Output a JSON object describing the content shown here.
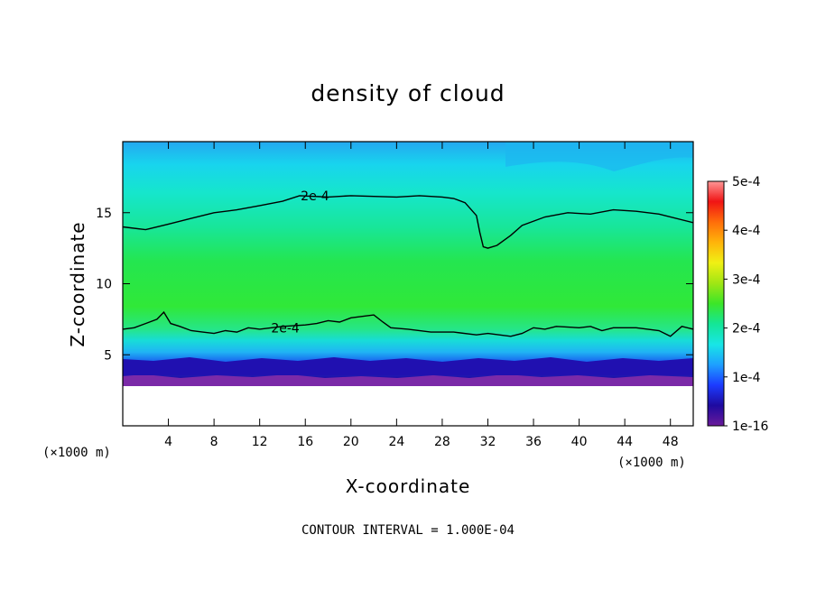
{
  "chart_data": {
    "type": "heatmap",
    "title": "density of cloud",
    "xlabel": "X-coordinate",
    "ylabel": "Z-coordinate",
    "x_unit": "(×1000 m)",
    "y_unit": "(×1000 m)",
    "xlim": [
      0,
      50
    ],
    "ylim": [
      0,
      20
    ],
    "x_ticks": [
      4,
      8,
      12,
      16,
      20,
      24,
      28,
      32,
      36,
      40,
      44,
      48
    ],
    "y_ticks": [
      5,
      10,
      15
    ],
    "note": "CONTOUR INTERVAL = 1.000E-04",
    "colorbar": {
      "min": 1e-16,
      "max": 0.0005,
      "tick_values": [
        1e-16,
        0.0001,
        0.0002,
        0.0003,
        0.0004,
        0.0005
      ],
      "tick_labels": [
        "1e-16",
        "1e-4",
        "2e-4",
        "3e-4",
        "4e-4",
        "5e-4"
      ],
      "stops": [
        "#6a1a9a",
        "#1e0aa0",
        "#1c3cff",
        "#1ea0ff",
        "#18e6e6",
        "#14e696",
        "#3ce628",
        "#a0e614",
        "#f0f014",
        "#ffb40a",
        "#ff6e0a",
        "#f01414",
        "#ff9696"
      ]
    },
    "contours": [
      {
        "label": "2e-4",
        "level": 0.0002,
        "label_at": [
          15.6,
          16.2
        ],
        "points": [
          [
            0,
            14.0
          ],
          [
            2,
            13.8
          ],
          [
            4,
            14.2
          ],
          [
            6,
            14.6
          ],
          [
            8,
            15.0
          ],
          [
            10,
            15.2
          ],
          [
            12,
            15.5
          ],
          [
            14,
            15.8
          ],
          [
            15.5,
            16.2
          ],
          [
            18,
            16.1
          ],
          [
            20,
            16.2
          ],
          [
            24,
            16.1
          ],
          [
            26,
            16.2
          ],
          [
            28,
            16.1
          ],
          [
            29,
            16.0
          ],
          [
            30,
            15.7
          ],
          [
            31,
            14.8
          ],
          [
            31.3,
            13.6
          ],
          [
            31.6,
            12.6
          ],
          [
            32,
            12.5
          ],
          [
            32.8,
            12.7
          ],
          [
            34,
            13.4
          ],
          [
            35,
            14.1
          ],
          [
            37,
            14.7
          ],
          [
            39,
            15.0
          ],
          [
            41,
            14.9
          ],
          [
            43,
            15.2
          ],
          [
            45,
            15.1
          ],
          [
            47,
            14.9
          ],
          [
            50,
            14.3
          ]
        ]
      },
      {
        "label": "2e-4",
        "level": 0.0002,
        "label_at": [
          13,
          6.9
        ],
        "points": [
          [
            0,
            6.8
          ],
          [
            1,
            6.9
          ],
          [
            2,
            7.2
          ],
          [
            3,
            7.5
          ],
          [
            3.6,
            8.0
          ],
          [
            4.2,
            7.2
          ],
          [
            5,
            7.0
          ],
          [
            6,
            6.7
          ],
          [
            7,
            6.6
          ],
          [
            8,
            6.5
          ],
          [
            9,
            6.7
          ],
          [
            10,
            6.6
          ],
          [
            11,
            6.9
          ],
          [
            12,
            6.8
          ],
          [
            14,
            7.0
          ],
          [
            16,
            7.1
          ],
          [
            17,
            7.2
          ],
          [
            18,
            7.4
          ],
          [
            19,
            7.3
          ],
          [
            20,
            7.6
          ],
          [
            21,
            7.7
          ],
          [
            22,
            7.8
          ],
          [
            22.8,
            7.3
          ],
          [
            23.5,
            6.9
          ],
          [
            25,
            6.8
          ],
          [
            27,
            6.6
          ],
          [
            29,
            6.6
          ],
          [
            31,
            6.4
          ],
          [
            32,
            6.5
          ],
          [
            34,
            6.3
          ],
          [
            35,
            6.5
          ],
          [
            36,
            6.9
          ],
          [
            37,
            6.8
          ],
          [
            38,
            7.0
          ],
          [
            40,
            6.9
          ],
          [
            41,
            7.0
          ],
          [
            42,
            6.7
          ],
          [
            43,
            6.9
          ],
          [
            45,
            6.9
          ],
          [
            47,
            6.7
          ],
          [
            48,
            6.3
          ],
          [
            49,
            7.0
          ],
          [
            50,
            6.8
          ]
        ]
      }
    ]
  }
}
